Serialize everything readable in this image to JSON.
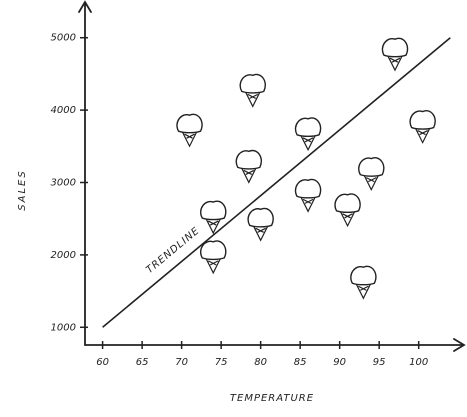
{
  "chart_data": {
    "type": "scatter",
    "x_label": "TEMPERATURE",
    "y_label": "SALES",
    "x": [
      71,
      79,
      86,
      97,
      100.5,
      78.5,
      94,
      86,
      74,
      80,
      91,
      74,
      93
    ],
    "values": [
      3750,
      4300,
      3700,
      4800,
      3800,
      3250,
      3150,
      2850,
      2550,
      2450,
      2650,
      2000,
      1650
    ],
    "xlim": [
      58,
      105
    ],
    "ylim": [
      700,
      5300
    ],
    "xticks": [
      60,
      65,
      70,
      75,
      80,
      85,
      90,
      95,
      100
    ],
    "yticks": [
      1000,
      2000,
      3000,
      4000,
      5000
    ],
    "trendline": {
      "label": "TRENDLINE",
      "x": [
        60,
        104
      ],
      "y": [
        1000,
        5000
      ]
    },
    "color": "#222222"
  }
}
